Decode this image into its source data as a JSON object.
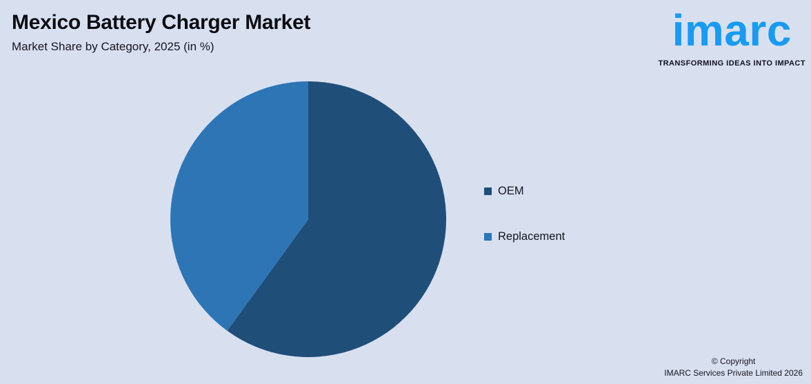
{
  "header": {
    "title": "Mexico Battery Charger Market",
    "subtitle": "Market Share by Category, 2025 (in %)"
  },
  "logo": {
    "wordmark": "imarc",
    "tagline": "TRANSFORMING IDEAS INTO IMPACT",
    "brand_blue": "#189bf2"
  },
  "chart_data": {
    "type": "pie",
    "title": "Mexico Battery Charger Market",
    "subtitle": "Market Share by Category, 2025 (in %)",
    "labels": [
      "OEM",
      "Replacement"
    ],
    "values": [
      60,
      40
    ],
    "colors": [
      "#1F4E79",
      "#2E75B6"
    ],
    "start_angle_deg": 0,
    "direction": "clockwise",
    "legend_position": "right",
    "data_labels_shown": false
  },
  "footer": {
    "line1": "© Copyright",
    "line2": "IMARC Services Private Limited 2026"
  },
  "theme": {
    "background": "#d8e0f0",
    "text_dark": "#14141e"
  }
}
